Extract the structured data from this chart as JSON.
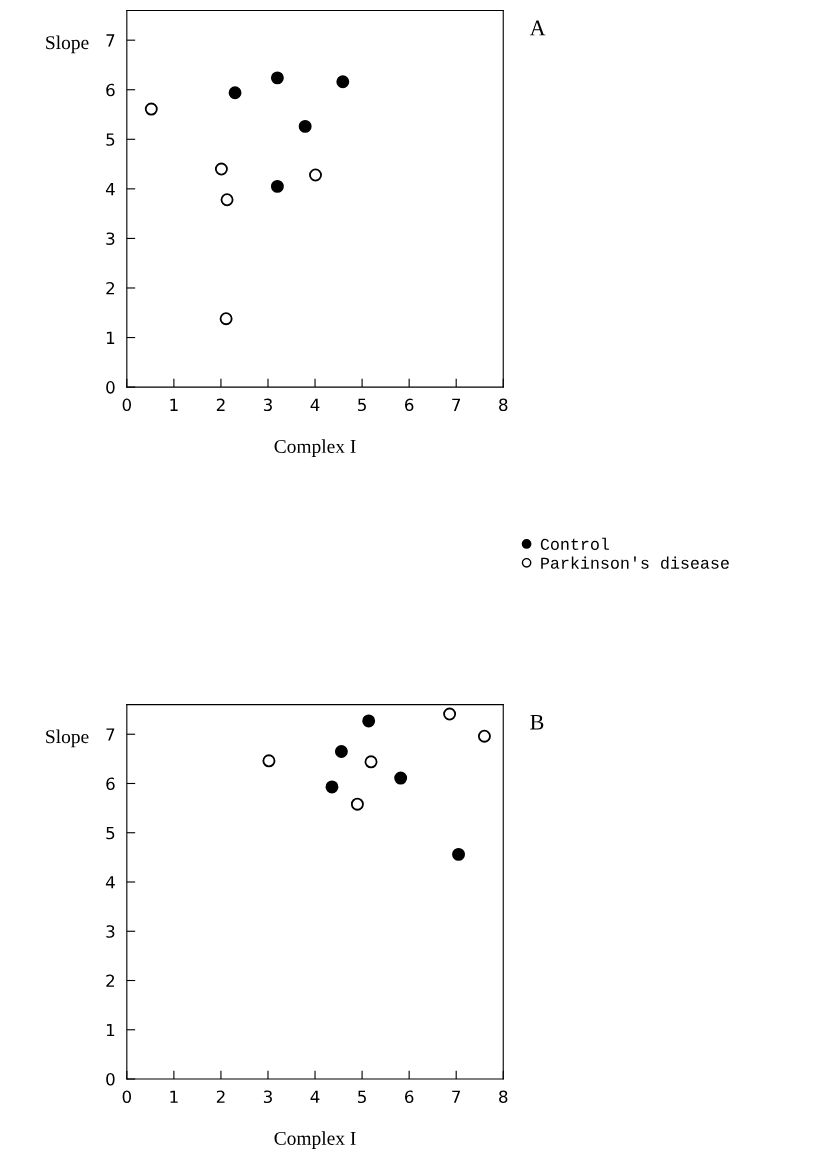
{
  "chart_data": [
    {
      "type": "scatter",
      "xlabel": "Complex I",
      "ylabel": "Slope",
      "annotations": [
        "A"
      ],
      "xlim": [
        0,
        8
      ],
      "ylim": [
        0,
        7.6
      ],
      "xticks": [
        0,
        1,
        2,
        3,
        4,
        5,
        6,
        7,
        8
      ],
      "yticks": [
        0,
        1,
        2,
        3,
        4,
        5,
        6,
        7
      ],
      "marker": "circle",
      "grid": false,
      "legend": "bottom right",
      "series": [
        {
          "name": "Control",
          "color": "#000000",
          "x": [
            2.3,
            3.2,
            4.59,
            3.79,
            3.2
          ],
          "values": [
            5.94,
            6.24,
            6.16,
            5.26,
            4.05
          ]
        },
        {
          "name": "Parkinson's disease",
          "color": "#ffffff",
          "x": [
            0.52,
            2.01,
            4.01,
            2.13,
            2.11
          ],
          "values": [
            5.61,
            4.4,
            4.28,
            3.78,
            1.38
          ]
        }
      ]
    },
    {
      "type": "scatter",
      "xlabel": "Complex I",
      "ylabel": "Slope",
      "annotations": [
        "B"
      ],
      "xlim": [
        0,
        8
      ],
      "ylim": [
        0,
        7.6
      ],
      "xticks": [
        0,
        1,
        2,
        3,
        4,
        5,
        6,
        7,
        8
      ],
      "yticks": [
        0,
        1,
        2,
        3,
        4,
        5,
        6,
        7
      ],
      "marker": "circle",
      "grid": false,
      "series": [
        {
          "color": "#000000",
          "x": [
            5.14,
            4.56,
            4.36,
            5.82,
            7.05
          ],
          "values": [
            7.27,
            6.65,
            5.93,
            6.11,
            4.56
          ]
        },
        {
          "color": "#ffffff",
          "x": [
            3.02,
            5.19,
            4.9,
            6.86,
            7.6
          ],
          "values": [
            6.46,
            6.44,
            5.58,
            7.41,
            6.96
          ]
        }
      ]
    }
  ]
}
